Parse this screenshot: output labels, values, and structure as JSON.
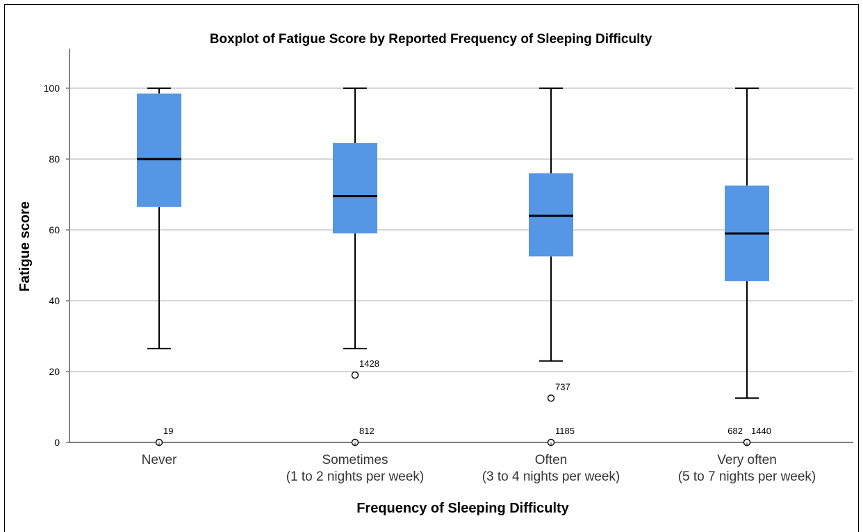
{
  "chart_data": {
    "type": "boxplot",
    "title": "Boxplot of Fatigue Score by Reported Frequency of Sleeping Difficulty",
    "xlabel": "Frequency of Sleeping Difficulty",
    "ylabel": "Fatigue score",
    "ylim": [
      0,
      110
    ],
    "yticks": [
      0,
      20,
      40,
      60,
      80,
      100
    ],
    "grid": true,
    "box_color": "#5597e4",
    "categories": [
      {
        "label": "Never",
        "sublabel": ""
      },
      {
        "label": "Sometimes",
        "sublabel": "(1 to 2 nights per week)"
      },
      {
        "label": "Often",
        "sublabel": "(3 to 4 nights per week)"
      },
      {
        "label": "Very often",
        "sublabel": "(5 to 7 nights per week)"
      }
    ],
    "boxes": [
      {
        "whisker_low": 26.5,
        "q1": 66.5,
        "median": 80,
        "q3": 98.5,
        "whisker_high": 100,
        "outliers": [
          {
            "value": 0,
            "id": "19",
            "id_side": "right"
          }
        ]
      },
      {
        "whisker_low": 26.5,
        "q1": 59,
        "median": 69.5,
        "q3": 84.5,
        "whisker_high": 100,
        "outliers": [
          {
            "value": 19,
            "id": "1428",
            "id_side": "right"
          },
          {
            "value": 0,
            "id": "812",
            "id_side": "right"
          }
        ]
      },
      {
        "whisker_low": 23,
        "q1": 52.5,
        "median": 64,
        "q3": 76,
        "whisker_high": 100,
        "outliers": [
          {
            "value": 12.5,
            "id": "737",
            "id_side": "right"
          },
          {
            "value": 0,
            "id": "1185",
            "id_side": "right"
          }
        ]
      },
      {
        "whisker_low": 12.5,
        "q1": 45.5,
        "median": 59,
        "q3": 72.5,
        "whisker_high": 100,
        "outliers": [
          {
            "value": 0,
            "id": "682",
            "id_side": "left"
          },
          {
            "value": 0,
            "id": "1440",
            "id_side": "right"
          }
        ]
      }
    ]
  }
}
